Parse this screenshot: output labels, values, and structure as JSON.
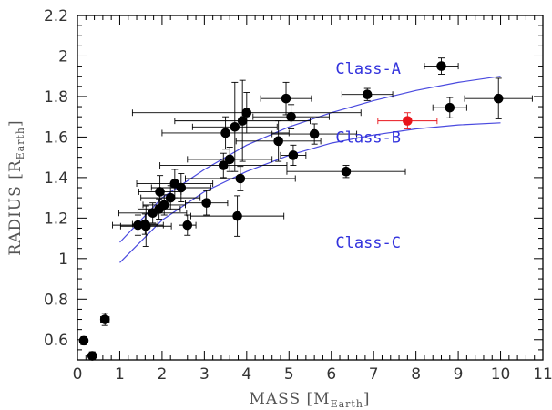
{
  "chart_data": {
    "type": "scatter",
    "title": "",
    "xlabel": "MASS [M",
    "xlabel_sub": "Earth",
    "xlabel_close": "]",
    "ylabel": "RADIUS [R",
    "ylabel_sub": "Earth",
    "ylabel_close": "]",
    "xlim": [
      0,
      11
    ],
    "ylim": [
      0.5,
      2.2
    ],
    "x_ticks": [
      0,
      1,
      2,
      3,
      4,
      5,
      6,
      7,
      8,
      9,
      10,
      11
    ],
    "x_tick_labels": [
      "0",
      "1",
      "2",
      "3",
      "4",
      "5",
      "6",
      "7",
      "8",
      "9",
      "10",
      "11"
    ],
    "y_ticks": [
      0.6,
      0.8,
      1.0,
      1.2,
      1.4,
      1.6,
      1.8,
      2.0,
      2.2
    ],
    "y_tick_labels": [
      "0.6",
      "0.8",
      "1",
      "1.2",
      "1.4",
      "1.6",
      "1.8",
      "2",
      "2.2"
    ],
    "grid": false,
    "legend": "none",
    "colors": {
      "points": "#000000",
      "highlight": "#e8141b",
      "curves": "#4a4adf",
      "labels": "#3333dd"
    },
    "annotations": [
      {
        "text": "Class-A",
        "x": 6.1,
        "y": 1.94
      },
      {
        "text": "Class-B",
        "x": 6.1,
        "y": 1.6
      },
      {
        "text": "Class-C",
        "x": 6.1,
        "y": 1.08
      }
    ],
    "curves": [
      {
        "points": [
          [
            1.0,
            1.08
          ],
          [
            2.0,
            1.3
          ],
          [
            3.0,
            1.44
          ],
          [
            4.0,
            1.56
          ],
          [
            5.0,
            1.65
          ],
          [
            6.0,
            1.72
          ],
          [
            7.0,
            1.78
          ],
          [
            8.0,
            1.83
          ],
          [
            9.0,
            1.87
          ],
          [
            10.0,
            1.9
          ]
        ]
      },
      {
        "points": [
          [
            1.0,
            0.98
          ],
          [
            2.0,
            1.19
          ],
          [
            3.0,
            1.33
          ],
          [
            4.0,
            1.43
          ],
          [
            5.0,
            1.51
          ],
          [
            6.0,
            1.57
          ],
          [
            7.0,
            1.61
          ],
          [
            8.0,
            1.64
          ],
          [
            9.0,
            1.66
          ],
          [
            10.0,
            1.67
          ]
        ]
      }
    ],
    "series": [
      {
        "points": [
          {
            "x": 0.15,
            "y": 0.595,
            "xerr": 0.05,
            "yerr": 0.02
          },
          {
            "x": 0.35,
            "y": 0.52,
            "xerr": 0.05,
            "yerr": 0.02
          },
          {
            "x": 0.65,
            "y": 0.7,
            "xerr": 0.1,
            "yerr": 0.03
          },
          {
            "x": 1.43,
            "y": 1.165,
            "xerr": 0.6,
            "yerr": 0.05
          },
          {
            "x": 1.62,
            "y": 1.16,
            "xerr": 0.6,
            "yerr": 0.1
          },
          {
            "x": 1.6,
            "y": 1.17,
            "xerr": 0.3,
            "yerr": 0.05
          },
          {
            "x": 1.78,
            "y": 1.225,
            "xerr": 0.8,
            "yerr": 0.05
          },
          {
            "x": 1.93,
            "y": 1.245,
            "xerr": 0.5,
            "yerr": 0.05
          },
          {
            "x": 1.95,
            "y": 1.33,
            "xerr": 0.5,
            "yerr": 0.08
          },
          {
            "x": 2.05,
            "y": 1.265,
            "xerr": 0.5,
            "yerr": 0.05
          },
          {
            "x": 2.2,
            "y": 1.3,
            "xerr": 0.7,
            "yerr": 0.06
          },
          {
            "x": 2.3,
            "y": 1.37,
            "xerr": 0.9,
            "yerr": 0.07
          },
          {
            "x": 2.45,
            "y": 1.35,
            "xerr": 0.7,
            "yerr": 0.07
          },
          {
            "x": 2.6,
            "y": 1.165,
            "xerr": 0.2,
            "yerr": 0.05
          },
          {
            "x": 3.05,
            "y": 1.275,
            "xerr": 0.5,
            "yerr": 0.06
          },
          {
            "x": 3.45,
            "y": 1.46,
            "xerr": 1.5,
            "yerr": 0.06
          },
          {
            "x": 3.5,
            "y": 1.62,
            "xerr": 1.5,
            "yerr": 0.08
          },
          {
            "x": 3.6,
            "y": 1.49,
            "xerr": 1.0,
            "yerr": 0.06
          },
          {
            "x": 3.72,
            "y": 1.65,
            "xerr": 1.0,
            "yerr": 0.22
          },
          {
            "x": 3.78,
            "y": 1.21,
            "xerr": 1.1,
            "yerr": 0.1
          },
          {
            "x": 3.85,
            "y": 1.395,
            "xerr": 1.3,
            "yerr": 0.06
          },
          {
            "x": 3.9,
            "y": 1.68,
            "xerr": 1.6,
            "yerr": 0.2
          },
          {
            "x": 4.0,
            "y": 1.72,
            "xerr": 2.7,
            "yerr": 0.1
          },
          {
            "x": 4.75,
            "y": 1.58,
            "xerr": 1.0,
            "yerr": 0.1
          },
          {
            "x": 4.93,
            "y": 1.79,
            "xerr": 0.6,
            "yerr": 0.08
          },
          {
            "x": 5.05,
            "y": 1.7,
            "xerr": 0.9,
            "yerr": 0.06
          },
          {
            "x": 5.1,
            "y": 1.51,
            "xerr": 0.3,
            "yerr": 0.05
          },
          {
            "x": 5.6,
            "y": 1.615,
            "xerr": 1.0,
            "yerr": 0.05
          },
          {
            "x": 6.35,
            "y": 1.43,
            "xerr": 1.4,
            "yerr": 0.03
          },
          {
            "x": 6.85,
            "y": 1.81,
            "xerr": 0.6,
            "yerr": 0.03
          },
          {
            "x": 8.6,
            "y": 1.95,
            "xerr": 0.4,
            "yerr": 0.04
          },
          {
            "x": 8.8,
            "y": 1.745,
            "xerr": 0.4,
            "yerr": 0.05
          },
          {
            "x": 9.95,
            "y": 1.79,
            "xerr": 0.8,
            "yerr": 0.1
          }
        ]
      },
      {
        "highlight": true,
        "points": [
          {
            "x": 7.8,
            "y": 1.68,
            "xerr": 0.7,
            "yerr": 0.04
          }
        ]
      }
    ]
  }
}
